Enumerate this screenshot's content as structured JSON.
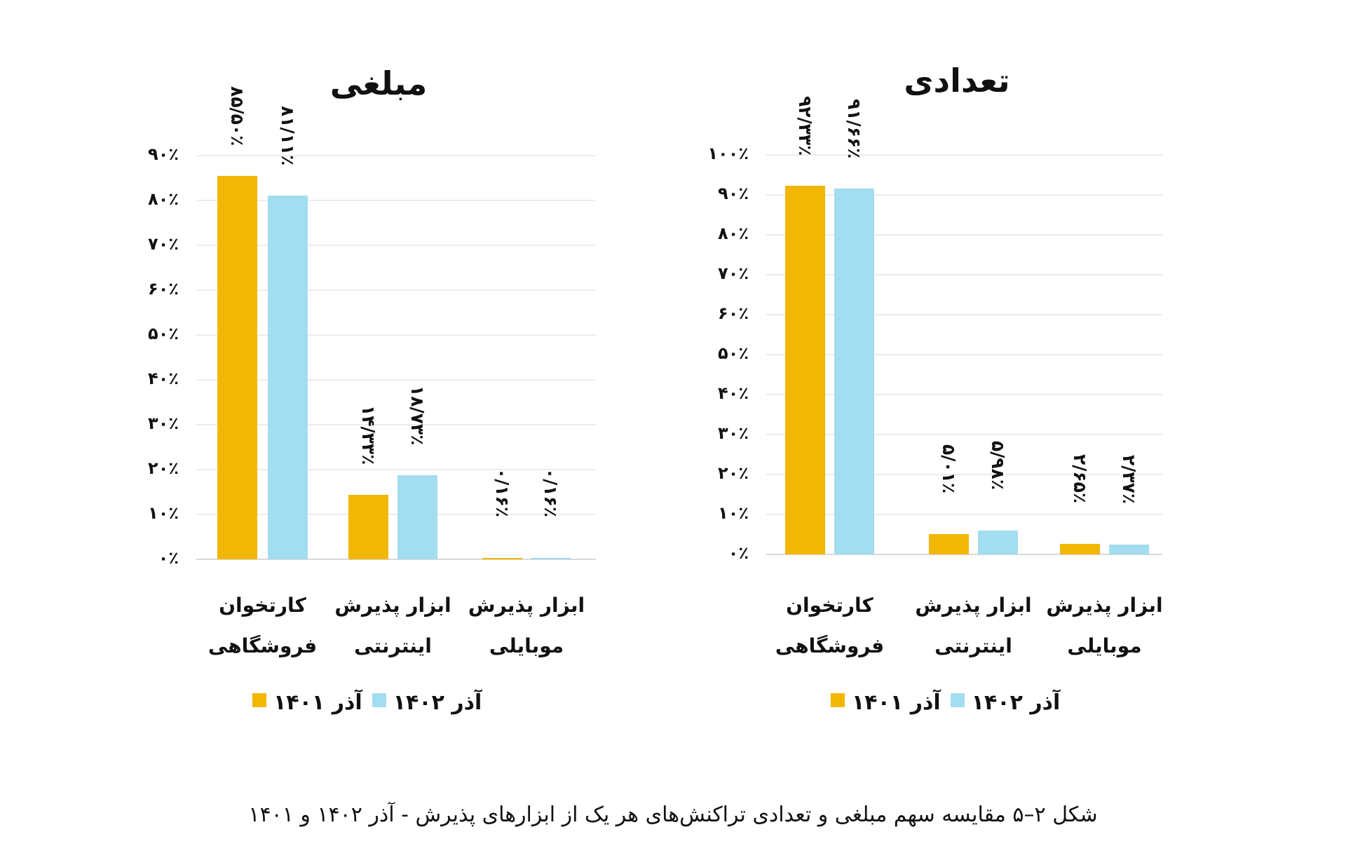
{
  "caption": "شکل ۲–۵ مقایسه سهم مبلغی و تعدادی تراکنش‌های هر یک از ابزارهای پذیرش - آذر ۱۴۰۲ و ۱۴۰۱",
  "colors": {
    "series_1401": "#F2B705",
    "series_1402": "#A3DDF0",
    "grid": "#ececec",
    "text": "#111111"
  },
  "chart_data": [
    {
      "type": "bar",
      "title": "مبلغی",
      "categories": [
        "کارتخوان فروشگاهی",
        "ابزار پذیرش اینترنتی",
        "ابزار پذیرش موبایلی"
      ],
      "category_lines": [
        [
          "کارتخوان",
          "فروشگاهی"
        ],
        [
          "ابزار پذیرش",
          "اینترنتی"
        ],
        [
          "ابزار پذیرش",
          "موبایلی"
        ]
      ],
      "series": [
        {
          "name": "آذر ۱۴۰۱",
          "values": [
            85.5,
            14.33,
            0.16
          ],
          "labels": [
            "۸۵/۵۰٪",
            "۱۴/۳۳٪",
            "۰/۱۶٪"
          ]
        },
        {
          "name": "آذر ۱۴۰۲",
          "values": [
            81.11,
            18.73,
            0.16
          ],
          "labels": [
            "۸۱/۱۱٪",
            "۱۸/۷۳٪",
            "۰/۱۶٪"
          ]
        }
      ],
      "yticks": [
        "۰٪",
        "۱۰٪",
        "۲۰٪",
        "۳۰٪",
        "۴۰٪",
        "۵۰٪",
        "۶۰٪",
        "۷۰٪",
        "۸۰٪",
        "۹۰٪"
      ],
      "ylim": [
        0,
        90
      ],
      "xlabel": "",
      "ylabel": "",
      "grid": true,
      "legend_position": "bottom"
    },
    {
      "type": "bar",
      "title": "تعدادی",
      "categories": [
        "کارتخوان فروشگاهی",
        "ابزار پذیرش اینترنتی",
        "ابزار پذیرش موبایلی"
      ],
      "category_lines": [
        [
          "کارتخوان",
          "فروشگاهی"
        ],
        [
          "ابزار پذیرش",
          "اینترنتی"
        ],
        [
          "ابزار پذیرش",
          "موبایلی"
        ]
      ],
      "series": [
        {
          "name": "آذر ۱۴۰۱",
          "values": [
            92.33,
            5.01,
            2.65
          ],
          "labels": [
            "۹۲/۳۳٪",
            "۵/۰۱٪",
            "۲/۶۵٪"
          ]
        },
        {
          "name": "آذر ۱۴۰۲",
          "values": [
            91.66,
            5.98,
            2.37
          ],
          "labels": [
            "۹۱/۶۶٪",
            "۵/۹۸٪",
            "۲/۳۷٪"
          ]
        }
      ],
      "yticks": [
        "۰٪",
        "۱۰٪",
        "۲۰٪",
        "۳۰٪",
        "۴۰٪",
        "۵۰٪",
        "۶۰٪",
        "۷۰٪",
        "۸۰٪",
        "۹۰٪",
        "۱۰۰٪"
      ],
      "ylim": [
        0,
        100
      ],
      "xlabel": "",
      "ylabel": "",
      "grid": true,
      "legend_position": "bottom"
    }
  ]
}
